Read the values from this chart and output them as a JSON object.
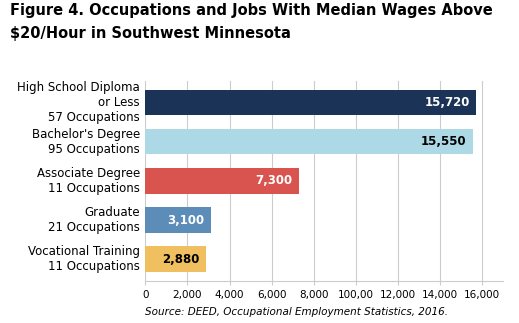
{
  "title_line1": "Figure 4. Occupations and Jobs With Median Wages Above",
  "title_line2": "$20/Hour in Southwest Minnesota",
  "categories": [
    "High School Diploma\nor Less\n57 Occupations",
    "Bachelor's Degree\n95 Occupations",
    "Associate Degree\n11 Occupations",
    "Graduate\n21 Occupations",
    "Vocational Training\n11 Occupations"
  ],
  "values": [
    15720,
    15550,
    7300,
    3100,
    2880
  ],
  "bar_colors": [
    "#1c3358",
    "#add8e6",
    "#d9534f",
    "#5b8db8",
    "#f0c060"
  ],
  "xlim": [
    0,
    17000
  ],
  "xticks": [
    0,
    2000,
    4000,
    6000,
    8000,
    10000,
    12000,
    14000,
    16000
  ],
  "xtick_labels": [
    "0",
    "2,000",
    "4,000",
    "6,000",
    "8,000",
    "100,00",
    "12,000",
    "14,000",
    "16,000"
  ],
  "value_labels": [
    "15,720",
    "15,550",
    "7,300",
    "3,100",
    "2,880"
  ],
  "value_colors": [
    "white",
    "black",
    "white",
    "white",
    "black"
  ],
  "source": "Source: DEED, Occupational Employment Statistics, 2016.",
  "bg_color": "#ffffff",
  "grid_color": "#cccccc",
  "title_fontsize": 10.5,
  "label_fontsize": 8.5,
  "value_fontsize": 8.5,
  "tick_fontsize": 7.5,
  "source_fontsize": 7.5
}
